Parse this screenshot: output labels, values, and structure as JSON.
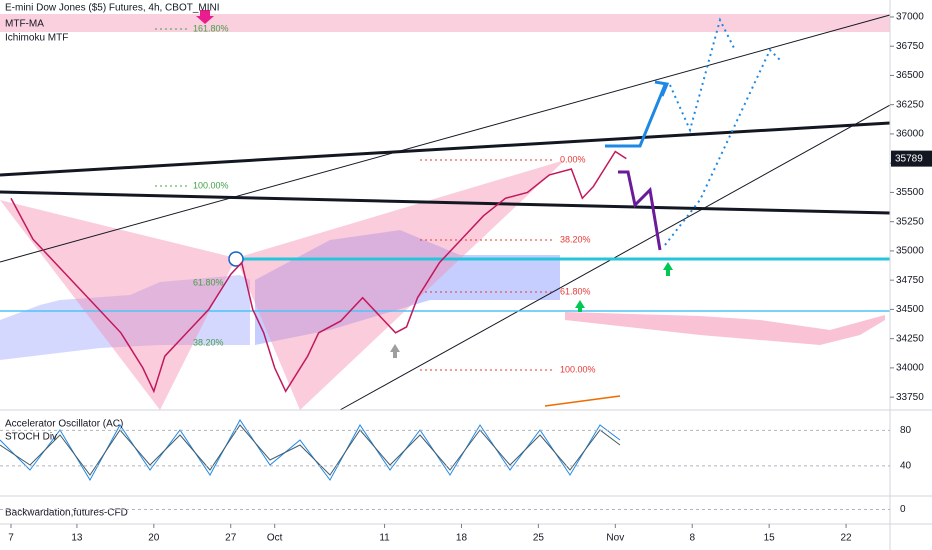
{
  "chart_data": {
    "type": "line",
    "title": "E-mini Dow Jones ($5) Futures, 4h, CBOT_MINI",
    "indicators": [
      "MTF-MA",
      "Ichimoku MTF"
    ],
    "x": [
      0,
      2,
      4,
      6,
      8,
      10,
      12,
      13,
      14,
      16,
      18,
      20,
      21,
      22,
      23,
      24,
      25,
      27,
      28,
      30,
      32,
      34,
      35,
      36,
      37,
      39,
      41,
      43,
      45,
      47,
      49,
      51,
      52,
      53,
      55,
      56
    ],
    "series": [
      {
        "color": "#c2185b",
        "values": [
          35450,
          35100,
          34900,
          34700,
          34500,
          34300,
          34000,
          33800,
          34100,
          34300,
          34500,
          34800,
          34900,
          34500,
          34300,
          34000,
          33800,
          34100,
          34300,
          34400,
          34600,
          34400,
          34300,
          34350,
          34600,
          34900,
          35100,
          35300,
          35450,
          35500,
          35650,
          35700,
          35450,
          35550,
          35850,
          35789
        ]
      }
    ],
    "last_price": 35789,
    "xlim": [
      -1,
      80
    ],
    "ylim": [
      33640,
      37145
    ],
    "xticks": [
      {
        "value": 0,
        "label": "7"
      },
      {
        "value": 6,
        "label": "13"
      },
      {
        "value": 13,
        "label": "20"
      },
      {
        "value": 20,
        "label": "27"
      },
      {
        "value": 24,
        "label": "Oct"
      },
      {
        "value": 34,
        "label": "11"
      },
      {
        "value": 41,
        "label": "18"
      },
      {
        "value": 48,
        "label": "25"
      },
      {
        "value": 55,
        "label": "Nov"
      },
      {
        "value": 62,
        "label": "8"
      },
      {
        "value": 69,
        "label": "15"
      },
      {
        "value": 76,
        "label": "22"
      }
    ],
    "yticks": [
      33750,
      34000,
      34250,
      34500,
      34750,
      35000,
      35250,
      35500,
      35750,
      36000,
      36250,
      36500,
      36750,
      37000
    ],
    "fib_labels": [
      "161.80%",
      "0.00%",
      "100.00%",
      "38.20%",
      "61.80%",
      "38.20%",
      "61.80%",
      "100.00%"
    ]
  },
  "oscillator": {
    "titles": [
      "Accelerator Oscillator (AC)",
      "STOCH Div"
    ],
    "ylim": [
      6,
      103
    ],
    "yticks": [
      80,
      40
    ]
  },
  "backwardation": {
    "title": "Backwardation,futures-CFD",
    "ylim": [
      -1,
      1
    ],
    "yticks": [
      0
    ]
  }
}
